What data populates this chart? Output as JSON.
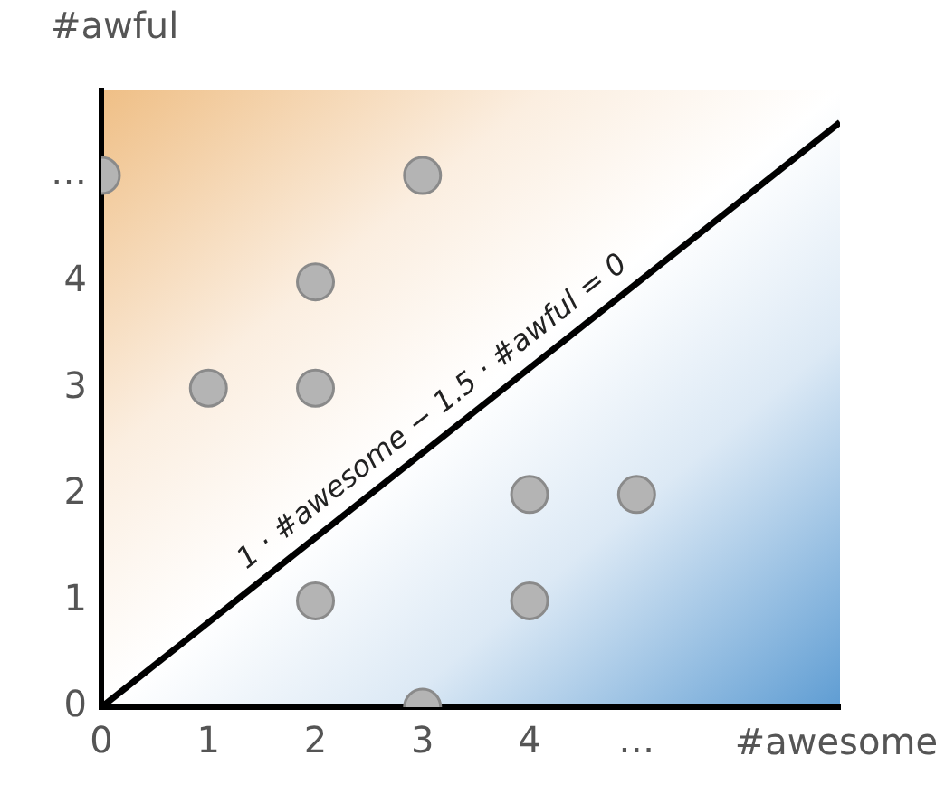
{
  "chart_data": {
    "type": "scatter",
    "xlabel": "#awesome",
    "ylabel": "#awful",
    "xlim": [
      0,
      6.9
    ],
    "ylim": [
      0,
      5.8
    ],
    "xticks": [
      0,
      1,
      2,
      3,
      4,
      {
        "value": 5,
        "label": "…"
      }
    ],
    "yticks": [
      0,
      1,
      2,
      3,
      4,
      {
        "value": 5,
        "label": "…"
      }
    ],
    "grid": false,
    "legend": false,
    "marker": "circle",
    "series": [
      {
        "type": "line",
        "marker": "none",
        "color": "#000000",
        "x": [
          0,
          6.9
        ],
        "values": [
          0,
          5.5
        ]
      },
      {
        "color": "#b4b4b4",
        "x": [
          0,
          3,
          2,
          1,
          2,
          2,
          4,
          5,
          4,
          3
        ],
        "values": [
          5,
          5,
          4,
          3,
          3,
          1,
          2,
          2,
          1,
          0
        ]
      }
    ],
    "annotations": [
      "1 · #awesome − 1.5 · #awful = 0"
    ]
  }
}
